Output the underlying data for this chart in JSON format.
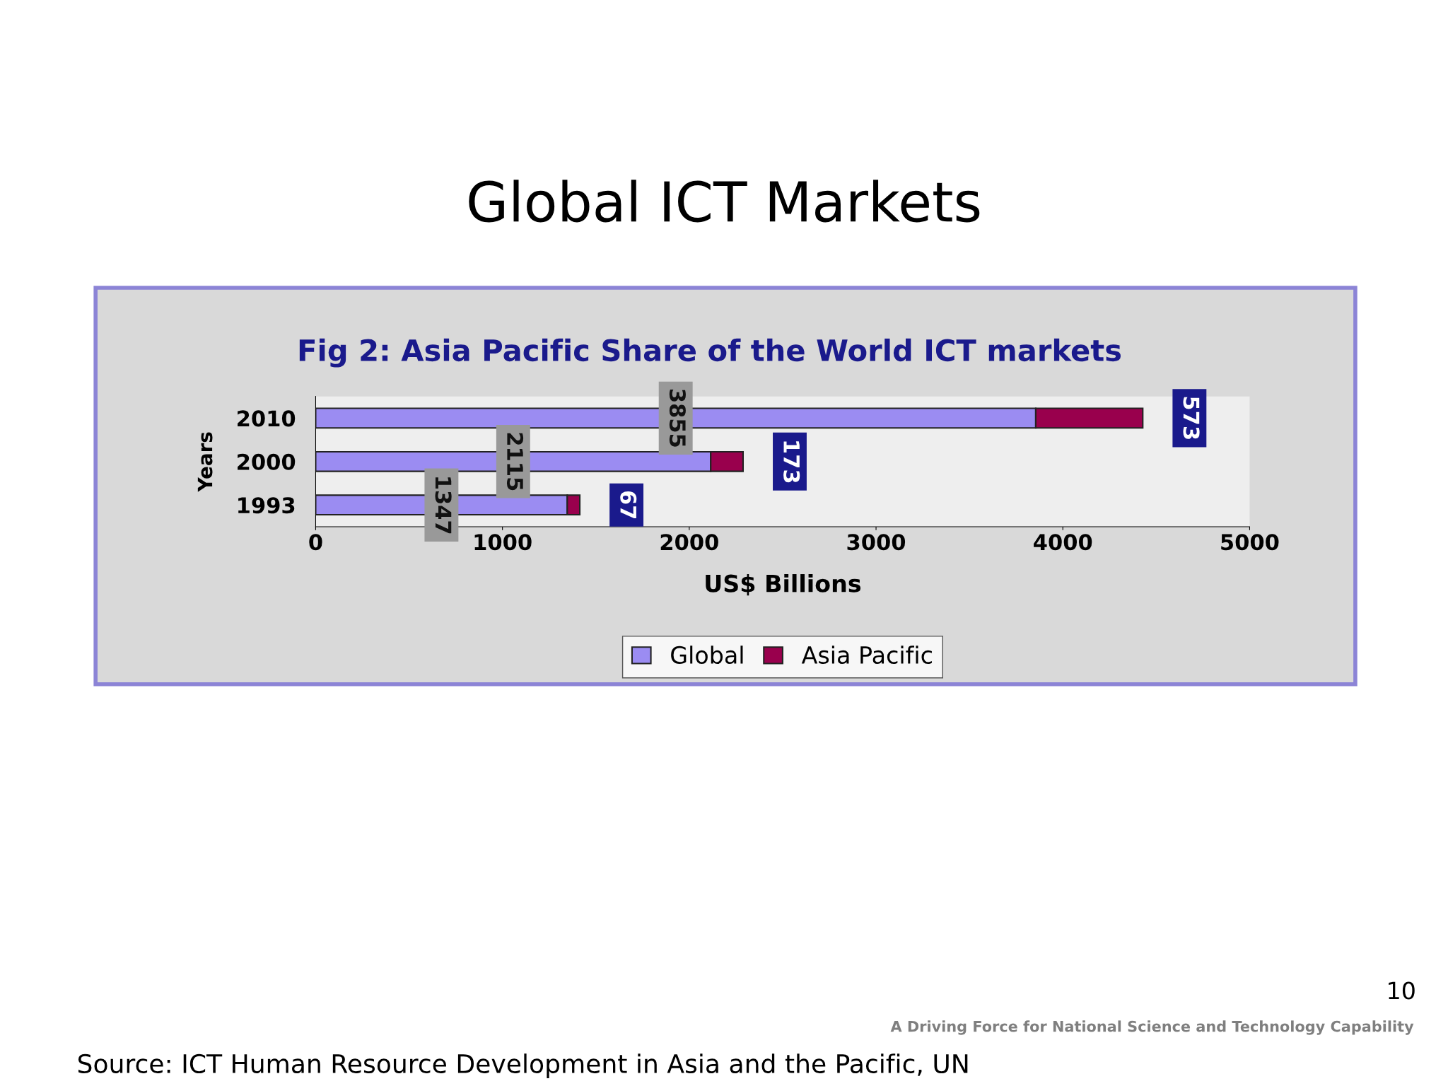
{
  "chart_data": {
    "type": "bar",
    "orientation": "horizontal",
    "stacked": true,
    "title": "Global ICT Markets",
    "subtitle": "Fig 2: Asia Pacific Share of the World ICT markets",
    "xlabel": "US$ Billions",
    "ylabel": "Years",
    "categories": [
      "2010",
      "2000",
      "1993"
    ],
    "series": [
      {
        "name": "Global",
        "color": "#9b8cf2",
        "values": [
          3855,
          2115,
          1347
        ]
      },
      {
        "name": "Asia Pacific",
        "color": "#99004d",
        "values": [
          573,
          173,
          67
        ]
      }
    ],
    "xlim": [
      0,
      5000
    ],
    "xticks": [
      0,
      1000,
      2000,
      3000,
      4000,
      5000
    ],
    "data_labels": true,
    "grid": false,
    "legend": "bottom",
    "annotations": [
      "Source: ICT Human Resource Development in Asia and the Pacific, UN",
      "A Driving Force for National Science and Technology Capability",
      "10"
    ]
  }
}
